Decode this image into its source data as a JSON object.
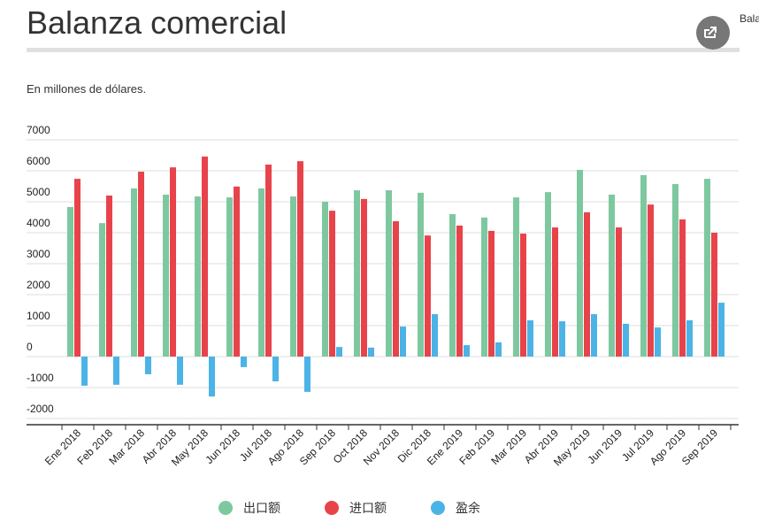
{
  "sidebar_text": "Bala",
  "chart_data": {
    "type": "bar",
    "title": "Balanza comercial",
    "subtitle": "En millones de dólares.",
    "categories": [
      "Ene 2018",
      "Feb 2018",
      "Mar 2018",
      "Abr 2018",
      "May 2018",
      "Jun 2018",
      "Jul 2018",
      "Ago 2018",
      "Sep 2018",
      "Oct 2018",
      "Nov 2018",
      "Dic 2018",
      "Ene 2019",
      "Feb 2019",
      "Mar 2019",
      "Abr 2019",
      "May 2019",
      "Jun 2019",
      "Jul 2019",
      "Ago 2019",
      "Sep 2019"
    ],
    "series": [
      {
        "name": "出口额",
        "color": "#7ec8a0",
        "values": [
          4830,
          4310,
          5430,
          5230,
          5170,
          5140,
          5430,
          5170,
          5000,
          5370,
          5370,
          5290,
          4600,
          4490,
          5140,
          5310,
          6030,
          5230,
          5860,
          5570,
          5740
        ]
      },
      {
        "name": "进口额",
        "color": "#e8434b",
        "values": [
          5740,
          5200,
          5970,
          6110,
          6460,
          5490,
          6200,
          6310,
          4710,
          5090,
          4370,
          3910,
          4230,
          4060,
          3970,
          4170,
          4660,
          4170,
          4910,
          4430,
          4000
        ]
      },
      {
        "name": "盈余",
        "color": "#4cb3e6",
        "values": [
          -940,
          -910,
          -570,
          -910,
          -1290,
          -340,
          -800,
          -1140,
          310,
          290,
          970,
          1370,
          370,
          460,
          1170,
          1140,
          1370,
          1060,
          940,
          1170,
          1740
        ]
      }
    ],
    "ylim": [
      -2200,
      7000
    ],
    "yticks": [
      -2000,
      -1000,
      0,
      1000,
      2000,
      3000,
      4000,
      5000,
      6000,
      7000
    ],
    "grid": true,
    "legend_position": "bottom"
  }
}
